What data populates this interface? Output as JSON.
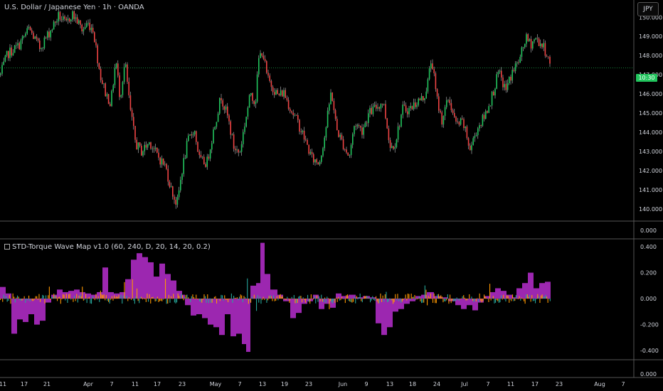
{
  "header": {
    "symbol_title": "U.S. Dollar / Japanese Yen · 1h · OANDA",
    "currency_button": "JPY",
    "last_price_tag": "10:30"
  },
  "indicator": {
    "title": "STD-Torque Wave Map v1.0 (60, 240, D, 20, 14, 20, 0.2)"
  },
  "colors": {
    "background": "#000000",
    "candle_up": "#22c55e",
    "candle_down": "#ef4444",
    "wick": "#e5e7eb",
    "osc_long": "#9c27b0",
    "osc_short_pos": "#ff9800",
    "osc_short_neg": "#26a69a",
    "price_line": "#22c55e",
    "separator": "#555555",
    "axis_text": "#d1d4dc"
  },
  "chart_data": [
    {
      "type": "candlestick",
      "name": "price",
      "x_tick_labels": [
        "11",
        "17",
        "21",
        "Apr",
        "7",
        "11",
        "17",
        "23",
        "May",
        "7",
        "13",
        "19",
        "23",
        "Jun",
        "9",
        "13",
        "18",
        "24",
        "Jul",
        "7",
        "11",
        "17",
        "23",
        "Aug",
        "7"
      ],
      "y_tick_labels": [
        "150.000",
        "149.000",
        "148.000",
        "147.000",
        "146.000",
        "145.000",
        "144.000",
        "143.000",
        "142.000",
        "141.000",
        "140.000"
      ],
      "ylim": [
        139.4,
        150.9
      ],
      "last_price": 147.35,
      "close_path": [
        [
          0,
          147.0
        ],
        [
          10,
          148.1
        ],
        [
          25,
          148.5
        ],
        [
          40,
          149.4
        ],
        [
          55,
          148.4
        ],
        [
          70,
          149.3
        ],
        [
          82,
          150.1
        ],
        [
          92,
          149.6
        ],
        [
          100,
          150.2
        ],
        [
          108,
          149.8
        ],
        [
          115,
          149.3
        ],
        [
          122,
          149.7
        ],
        [
          130,
          149.4
        ],
        [
          140,
          147.0
        ],
        [
          148,
          146.0
        ],
        [
          155,
          145.5
        ],
        [
          162,
          147.8
        ],
        [
          168,
          145.8
        ],
        [
          175,
          147.7
        ],
        [
          182,
          145.2
        ],
        [
          190,
          143.4
        ],
        [
          198,
          143.0
        ],
        [
          210,
          143.5
        ],
        [
          220,
          142.8
        ],
        [
          232,
          142.2
        ],
        [
          240,
          141.0
        ],
        [
          248,
          140.2
        ],
        [
          255,
          142.0
        ],
        [
          263,
          143.5
        ],
        [
          272,
          144.2
        ],
        [
          280,
          142.5
        ],
        [
          290,
          142.4
        ],
        [
          300,
          144.2
        ],
        [
          310,
          145.9
        ],
        [
          320,
          144.7
        ],
        [
          328,
          143.2
        ],
        [
          336,
          142.9
        ],
        [
          344,
          144.6
        ],
        [
          352,
          146.1
        ],
        [
          358,
          145.5
        ],
        [
          363,
          147.8
        ],
        [
          368,
          148.3
        ],
        [
          375,
          146.8
        ],
        [
          382,
          146.4
        ],
        [
          390,
          145.9
        ],
        [
          398,
          146.1
        ],
        [
          408,
          145.2
        ],
        [
          418,
          144.5
        ],
        [
          428,
          143.6
        ],
        [
          438,
          142.6
        ],
        [
          448,
          142.4
        ],
        [
          456,
          143.9
        ],
        [
          465,
          146.2
        ],
        [
          472,
          144.2
        ],
        [
          480,
          143.5
        ],
        [
          490,
          142.7
        ],
        [
          498,
          144.5
        ],
        [
          508,
          144.1
        ],
        [
          518,
          145.0
        ],
        [
          528,
          145.3
        ],
        [
          538,
          145.6
        ],
        [
          548,
          143.2
        ],
        [
          555,
          143.5
        ],
        [
          565,
          145.2
        ],
        [
          575,
          145.2
        ],
        [
          585,
          145.6
        ],
        [
          595,
          145.8
        ],
        [
          600,
          146.5
        ],
        [
          606,
          147.9
        ],
        [
          612,
          146.0
        ],
        [
          620,
          144.6
        ],
        [
          630,
          145.8
        ],
        [
          640,
          144.4
        ],
        [
          650,
          144.5
        ],
        [
          660,
          143.1
        ],
        [
          670,
          144.2
        ],
        [
          680,
          144.8
        ],
        [
          690,
          145.8
        ],
        [
          700,
          147.1
        ],
        [
          710,
          146.2
        ],
        [
          720,
          147.2
        ],
        [
          730,
          147.8
        ],
        [
          738,
          148.9
        ],
        [
          745,
          148.6
        ],
        [
          752,
          148.9
        ],
        [
          760,
          148.6
        ],
        [
          768,
          148.1
        ],
        [
          774,
          147.3
        ]
      ]
    },
    {
      "type": "bar",
      "name": "STD-Torque Wave Map v1.0",
      "y_tick_labels": [
        "0.400",
        "0.200",
        "0.000",
        "-0.200",
        "-0.400"
      ],
      "ylim": [
        -0.465,
        0.455
      ],
      "bottom_axis_label": "0.000",
      "upper_pane_axis_label": "0.000",
      "long_wave": [
        [
          0,
          0.09
        ],
        [
          8,
          0.04
        ],
        [
          16,
          -0.27
        ],
        [
          24,
          -0.16
        ],
        [
          32,
          -0.18
        ],
        [
          40,
          -0.12
        ],
        [
          48,
          -0.2
        ],
        [
          56,
          -0.17
        ],
        [
          64,
          -0.03
        ],
        [
          72,
          0.03
        ],
        [
          80,
          0.07
        ],
        [
          88,
          0.05
        ],
        [
          96,
          0.06
        ],
        [
          104,
          0.07
        ],
        [
          112,
          0.05
        ],
        [
          120,
          0.04
        ],
        [
          128,
          0.03
        ],
        [
          136,
          0.05
        ],
        [
          144,
          0.24
        ],
        [
          152,
          0.05
        ],
        [
          160,
          0.04
        ],
        [
          168,
          0.05
        ],
        [
          176,
          0.15
        ],
        [
          184,
          0.3
        ],
        [
          192,
          0.35
        ],
        [
          200,
          0.32
        ],
        [
          208,
          0.28
        ],
        [
          216,
          0.17
        ],
        [
          224,
          0.27
        ],
        [
          232,
          0.19
        ],
        [
          240,
          0.14
        ],
        [
          248,
          0.06
        ],
        [
          256,
          0.03
        ],
        [
          260,
          -0.05
        ],
        [
          268,
          -0.13
        ],
        [
          276,
          -0.12
        ],
        [
          284,
          -0.15
        ],
        [
          292,
          -0.2
        ],
        [
          300,
          -0.22
        ],
        [
          308,
          -0.28
        ],
        [
          316,
          -0.12
        ],
        [
          324,
          -0.29
        ],
        [
          332,
          -0.27
        ],
        [
          340,
          -0.35
        ],
        [
          346,
          -0.41
        ],
        [
          352,
          0.1
        ],
        [
          360,
          0.12
        ],
        [
          366,
          0.43
        ],
        [
          372,
          0.19
        ],
        [
          380,
          0.07
        ],
        [
          390,
          0.03
        ],
        [
          398,
          -0.02
        ],
        [
          408,
          -0.15
        ],
        [
          416,
          -0.11
        ],
        [
          424,
          -0.04
        ],
        [
          432,
          -0.02
        ],
        [
          440,
          0.03
        ],
        [
          448,
          -0.08
        ],
        [
          456,
          -0.04
        ],
        [
          464,
          -0.07
        ],
        [
          472,
          0.04
        ],
        [
          480,
          0.02
        ],
        [
          490,
          0.03
        ],
        [
          500,
          0.01
        ],
        [
          510,
          0.02
        ],
        [
          520,
          0.01
        ],
        [
          528,
          -0.19
        ],
        [
          536,
          -0.28
        ],
        [
          544,
          -0.22
        ],
        [
          552,
          -0.1
        ],
        [
          560,
          -0.08
        ],
        [
          568,
          -0.04
        ],
        [
          576,
          -0.02
        ],
        [
          584,
          0.02
        ],
        [
          592,
          0.03
        ],
        [
          600,
          0.05
        ],
        [
          610,
          0.02
        ],
        [
          620,
          0.01
        ],
        [
          630,
          -0.02
        ],
        [
          640,
          -0.05
        ],
        [
          648,
          -0.08
        ],
        [
          656,
          -0.05
        ],
        [
          664,
          -0.09
        ],
        [
          672,
          -0.03
        ],
        [
          680,
          0.02
        ],
        [
          688,
          0.05
        ],
        [
          696,
          0.08
        ],
        [
          704,
          0.06
        ],
        [
          712,
          0.03
        ],
        [
          720,
          0.01
        ],
        [
          726,
          0.08
        ],
        [
          734,
          0.12
        ],
        [
          742,
          0.2
        ],
        [
          750,
          0.08
        ],
        [
          758,
          0.12
        ],
        [
          766,
          0.13
        ]
      ]
    }
  ]
}
